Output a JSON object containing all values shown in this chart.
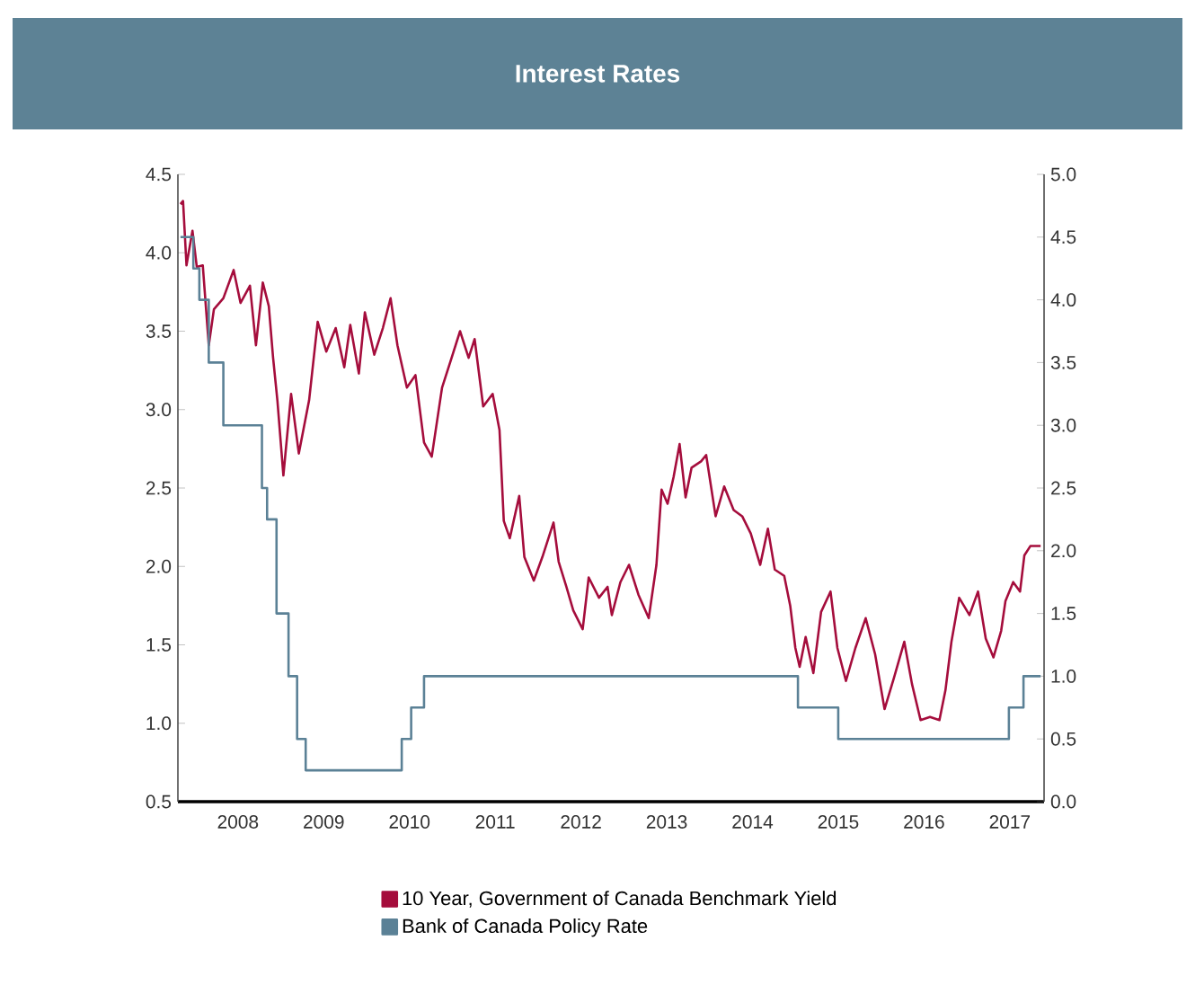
{
  "chart_data": {
    "type": "line",
    "title": "Interest Rates",
    "xlim": [
      2007.8,
      2017.9
    ],
    "xticks": [
      {
        "value": 2008.5,
        "label": "2008"
      },
      {
        "value": 2009.5,
        "label": "2009"
      },
      {
        "value": 2010.5,
        "label": "2010"
      },
      {
        "value": 2011.5,
        "label": "2011"
      },
      {
        "value": 2012.5,
        "label": "2012"
      },
      {
        "value": 2013.5,
        "label": "2013"
      },
      {
        "value": 2014.5,
        "label": "2014"
      },
      {
        "value": 2015.5,
        "label": "2015"
      },
      {
        "value": 2016.5,
        "label": "2016"
      },
      {
        "value": 2017.5,
        "label": "2017"
      }
    ],
    "ylim": [
      0.5,
      4.5
    ],
    "yticks": [
      0.5,
      {
        "value": 1,
        "label": "1.0"
      },
      1.5,
      {
        "value": 2,
        "label": "2.0"
      },
      2.5,
      {
        "value": 3,
        "label": "3.0"
      },
      3.5,
      {
        "value": 4,
        "label": "4.0"
      },
      4.5
    ],
    "y2lim": [
      0,
      5
    ],
    "y2ticks": [
      {
        "value": 0,
        "label": "0.0"
      },
      0.5,
      {
        "value": 1,
        "label": "1.0"
      },
      1.5,
      {
        "value": 2,
        "label": "2.0"
      },
      2.5,
      {
        "value": 3,
        "label": "3.0"
      },
      3.5,
      {
        "value": 4,
        "label": "4.0"
      },
      4.5,
      {
        "value": 5,
        "label": "5.0"
      }
    ],
    "legend": "bottom",
    "grid": false,
    "series": [
      {
        "name": "10 Year, Government of Canada Benchmark Yield",
        "color": "#a50d3c",
        "x": [
          2007.83,
          2007.86,
          2007.9,
          2007.97,
          2008.02,
          2008.09,
          2008.16,
          2008.22,
          2008.33,
          2008.45,
          2008.53,
          2008.64,
          2008.71,
          2008.79,
          2008.86,
          2008.91,
          2008.96,
          2009.03,
          2009.12,
          2009.21,
          2009.33,
          2009.43,
          2009.53,
          2009.64,
          2009.74,
          2009.81,
          2009.91,
          2009.98,
          2010.09,
          2010.19,
          2010.28,
          2010.36,
          2010.47,
          2010.57,
          2010.67,
          2010.76,
          2010.88,
          2010.98,
          2011.09,
          2011.19,
          2011.26,
          2011.36,
          2011.47,
          2011.55,
          2011.6,
          2011.67,
          2011.78,
          2011.84,
          2011.95,
          2012.05,
          2012.18,
          2012.24,
          2012.33,
          2012.41,
          2012.52,
          2012.59,
          2012.71,
          2012.81,
          2012.86,
          2012.96,
          2013.06,
          2013.17,
          2013.29,
          2013.38,
          2013.44,
          2013.51,
          2013.58,
          2013.65,
          2013.72,
          2013.79,
          2013.9,
          2013.96,
          2014.07,
          2014.17,
          2014.28,
          2014.38,
          2014.48,
          2014.59,
          2014.68,
          2014.76,
          2014.87,
          2014.94,
          2015.0,
          2015.05,
          2015.12,
          2015.21,
          2015.3,
          2015.41,
          2015.49,
          2015.59,
          2015.7,
          2015.82,
          2015.93,
          2016.04,
          2016.15,
          2016.27,
          2016.36,
          2016.46,
          2016.57,
          2016.68,
          2016.75,
          2016.82,
          2016.91,
          2017.03,
          2017.13,
          2017.22,
          2017.31,
          2017.4,
          2017.45,
          2017.54,
          2017.62,
          2017.67,
          2017.74,
          2017.86
        ],
        "values": [
          4.31,
          4.33,
          3.92,
          4.14,
          3.91,
          3.92,
          3.41,
          3.64,
          3.71,
          3.89,
          3.68,
          3.79,
          3.41,
          3.81,
          3.66,
          3.33,
          3.06,
          2.58,
          3.1,
          2.72,
          3.06,
          3.56,
          3.37,
          3.52,
          3.27,
          3.54,
          3.23,
          3.62,
          3.35,
          3.52,
          3.71,
          3.41,
          3.14,
          3.22,
          2.79,
          2.7,
          3.14,
          3.31,
          3.5,
          3.33,
          3.45,
          3.02,
          3.1,
          2.87,
          2.29,
          2.18,
          2.45,
          2.06,
          1.91,
          2.06,
          2.28,
          2.03,
          1.87,
          1.72,
          1.6,
          1.93,
          1.8,
          1.87,
          1.69,
          1.9,
          2.01,
          1.82,
          1.67,
          2.01,
          2.49,
          2.4,
          2.57,
          2.78,
          2.44,
          2.63,
          2.67,
          2.71,
          2.32,
          2.51,
          2.36,
          2.32,
          2.21,
          2.01,
          2.24,
          1.98,
          1.94,
          1.75,
          1.48,
          1.36,
          1.55,
          1.32,
          1.71,
          1.84,
          1.48,
          1.27,
          1.48,
          1.67,
          1.44,
          1.09,
          1.29,
          1.52,
          1.25,
          1.02,
          1.04,
          1.02,
          1.21,
          1.52,
          1.8,
          1.69,
          1.84,
          1.54,
          1.42,
          1.59,
          1.78,
          1.9,
          1.84,
          2.07,
          2.13,
          2.13
        ]
      },
      {
        "name": "Bank of Canada Policy Rate",
        "color": "#5b8196",
        "type": "step",
        "axis": "y2",
        "x": [
          2007.83,
          2007.98,
          2008.05,
          2008.16,
          2008.33,
          2008.78,
          2008.84,
          2008.95,
          2009.09,
          2009.19,
          2009.29,
          2010.41,
          2010.52,
          2010.67,
          2015.03,
          2015.5,
          2017.49,
          2017.66,
          2017.86
        ],
        "values": [
          4.5,
          4.25,
          4.0,
          3.5,
          3.0,
          2.5,
          2.25,
          1.5,
          1.0,
          0.5,
          0.25,
          0.5,
          0.75,
          1.0,
          0.75,
          0.5,
          0.75,
          1.0,
          1.0
        ]
      }
    ]
  }
}
